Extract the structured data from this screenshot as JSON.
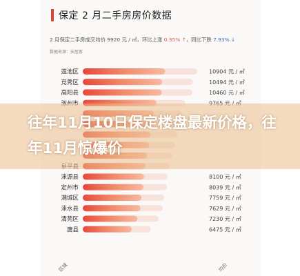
{
  "header": {
    "title": "保定 2 月二手房房价数据",
    "summary_prefix": "2 月保定二手房成交均价 9920 元 / ㎡，环比上涨",
    "mom_change": "0.35% ↑",
    "yoy_prefix": "，同比下跌",
    "yoy_change": "7.93% ↓",
    "source": "数据来源：安居客"
  },
  "overlay": {
    "headline": "往年11月10日保定楼盘最新价格，往年11月惊爆价"
  },
  "chart_data": {
    "type": "bar",
    "orientation": "horizontal",
    "categories": [
      "莲池区",
      "竞秀区",
      "高阳县",
      "涿州市",
      "",
      "",
      "",
      "",
      "",
      "阜平县",
      "涞源县",
      "定州市",
      "满城区",
      "涞水县",
      "清苑区",
      "唐县"
    ],
    "values": [
      10904,
      10494,
      10460,
      9765,
      9400,
      9200,
      9000,
      8800,
      8500,
      8300,
      8100,
      8039,
      7759,
      7629,
      7230,
      6475
    ],
    "value_labels": [
      "10904 元 / ㎡",
      "10494 元 / ㎡",
      "10460 元 / ㎡",
      "9765 元 / ㎡",
      "",
      "",
      "",
      "",
      "",
      "",
      "8100 元 / ㎡",
      "8039 元 / ㎡",
      "7759 元 / ㎡",
      "7629 元 / ㎡",
      "7230 元 / ㎡",
      "6475 元 / ㎡"
    ],
    "gradient_colors": [
      "#e8483c",
      "#f08a6a",
      "#f7b9a2"
    ],
    "track_color": "#f7e3dc",
    "bottom_labels": [
      "区域",
      "",
      "",
      "",
      "",
      "",
      "均价"
    ],
    "grid": false
  }
}
